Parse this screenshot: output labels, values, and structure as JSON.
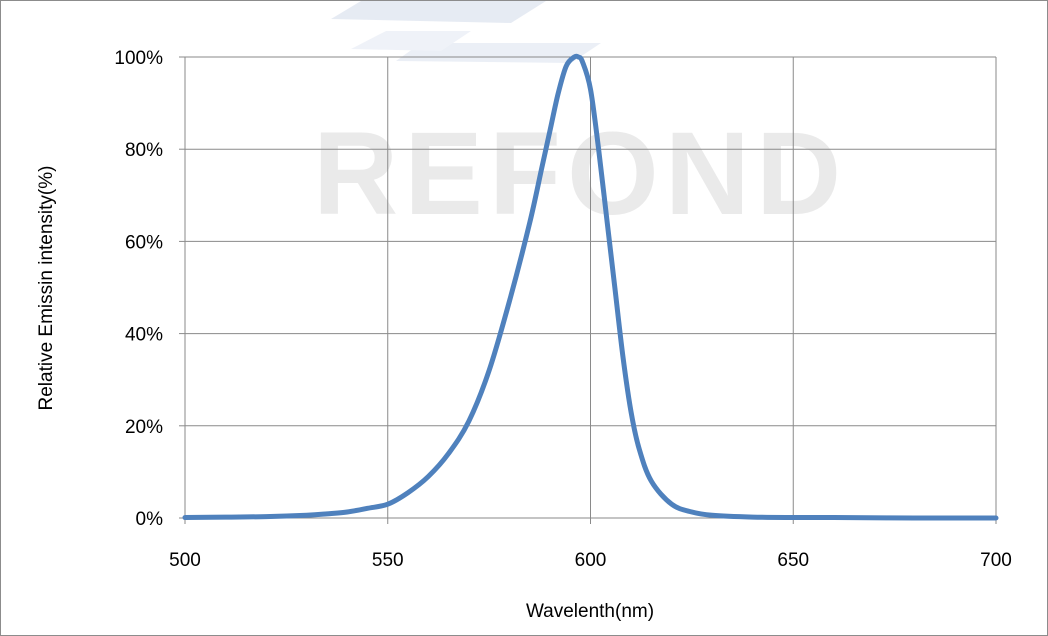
{
  "chart_data": {
    "type": "line",
    "title": "",
    "xlabel": "Wavelenth(nm)",
    "ylabel": "Relative Emissin intensity(%)",
    "xlim": [
      500,
      700
    ],
    "ylim": [
      0,
      100
    ],
    "x_ticks": [
      500,
      550,
      600,
      650,
      700
    ],
    "y_ticks": [
      0,
      20,
      40,
      60,
      80,
      100
    ],
    "x_tick_labels": [
      "500",
      "550",
      "600",
      "650",
      "700"
    ],
    "y_tick_labels": [
      "0%",
      "20%",
      "40%",
      "60%",
      "80%",
      "100%"
    ],
    "grid": true,
    "legend": "none",
    "watermark": "REFOND",
    "series": [
      {
        "color": "#4f81bd",
        "x": [
          500,
          510,
          520,
          530,
          535,
          540,
          545,
          550,
          555,
          560,
          565,
          570,
          575,
          580,
          585,
          588,
          590,
          592,
          594,
          596,
          597,
          598,
          600,
          602,
          604,
          606,
          608,
          610,
          612,
          615,
          620,
          625,
          630,
          640,
          650,
          660,
          680,
          700
        ],
        "y": [
          0.1,
          0.2,
          0.3,
          0.6,
          0.9,
          1.3,
          2.1,
          3.0,
          5.5,
          9.0,
          14.0,
          21.0,
          32.0,
          47.0,
          64.0,
          76.0,
          84.0,
          92.0,
          98.0,
          100.0,
          100.0,
          99.0,
          93.0,
          80.0,
          65.0,
          50.0,
          35.0,
          23.0,
          15.0,
          8.0,
          3.0,
          1.3,
          0.6,
          0.2,
          0.1,
          0.1,
          0.0,
          0.0
        ]
      }
    ]
  }
}
